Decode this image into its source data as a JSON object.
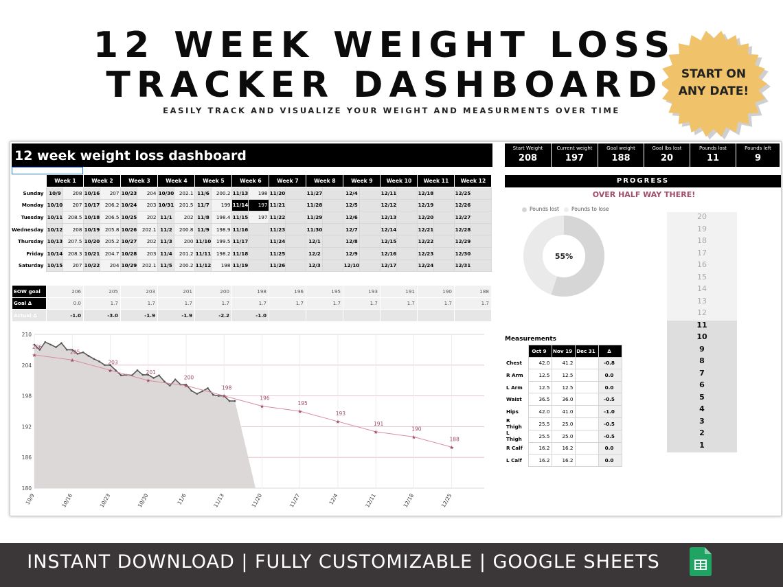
{
  "hero": {
    "line1": "12 WEEK WEIGHT LOSS",
    "line2": "TRACKER DASHBOARD",
    "subtitle": "EASILY TRACK AND VISUALIZE YOUR WEIGHT AND MEASURMENTS OVER TIME",
    "badge_line1": "START ON",
    "badge_line2": "ANY DATE!",
    "badge_color": "#f0c36a"
  },
  "sheet": {
    "title": "12 week weight loss dashboard",
    "stats": [
      {
        "label": "Start Weight",
        "value": "208"
      },
      {
        "label": "Current weight",
        "value": "197"
      },
      {
        "label": "Goal weight",
        "value": "188"
      },
      {
        "label": "Goal lbs lost",
        "value": "20"
      },
      {
        "label": "Pounds lost",
        "value": "11"
      },
      {
        "label": "Pounds left",
        "value": "9"
      }
    ],
    "weeks": [
      "Week 1",
      "Week 2",
      "Week 3",
      "Week 4",
      "Week 5",
      "Week 6",
      "Week 7",
      "Week 8",
      "Week 9",
      "Week 10",
      "Week 11",
      "Week 12"
    ],
    "days": [
      "Sunday",
      "Monday",
      "Tuesday",
      "Wednesday",
      "Thursday",
      "Friday",
      "Saturday"
    ],
    "grid": [
      [
        [
          "10/9",
          "208"
        ],
        [
          "10/16",
          "207"
        ],
        [
          "10/23",
          "204"
        ],
        [
          "10/30",
          "202.1"
        ],
        [
          "11/6",
          "200.2"
        ],
        [
          "11/13",
          "198"
        ],
        [
          "11/20",
          ""
        ],
        [
          "11/27",
          ""
        ],
        [
          "12/4",
          ""
        ],
        [
          "12/11",
          ""
        ],
        [
          "12/18",
          ""
        ],
        [
          "12/25",
          ""
        ]
      ],
      [
        [
          "10/10",
          "207"
        ],
        [
          "10/17",
          "206.2"
        ],
        [
          "10/24",
          "203"
        ],
        [
          "10/31",
          "201.5"
        ],
        [
          "11/7",
          "199"
        ],
        [
          "11/14",
          "197"
        ],
        [
          "11/21",
          ""
        ],
        [
          "11/28",
          ""
        ],
        [
          "12/5",
          ""
        ],
        [
          "12/12",
          ""
        ],
        [
          "12/19",
          ""
        ],
        [
          "12/26",
          ""
        ]
      ],
      [
        [
          "10/11",
          "208.5"
        ],
        [
          "10/18",
          "206.5"
        ],
        [
          "10/25",
          "202"
        ],
        [
          "11/1",
          "202"
        ],
        [
          "11/8",
          "198.4"
        ],
        [
          "11/15",
          "197"
        ],
        [
          "11/22",
          ""
        ],
        [
          "11/29",
          ""
        ],
        [
          "12/6",
          ""
        ],
        [
          "12/13",
          ""
        ],
        [
          "12/20",
          ""
        ],
        [
          "12/27",
          ""
        ]
      ],
      [
        [
          "10/12",
          "208"
        ],
        [
          "10/19",
          "205.8"
        ],
        [
          "10/26",
          "202.1"
        ],
        [
          "11/2",
          "200.8"
        ],
        [
          "11/9",
          "198.9"
        ],
        [
          "11/16",
          ""
        ],
        [
          "11/23",
          ""
        ],
        [
          "11/30",
          ""
        ],
        [
          "12/7",
          ""
        ],
        [
          "12/14",
          ""
        ],
        [
          "12/21",
          ""
        ],
        [
          "12/28",
          ""
        ]
      ],
      [
        [
          "10/13",
          "207.5"
        ],
        [
          "10/20",
          "205.2"
        ],
        [
          "10/27",
          "202"
        ],
        [
          "11/3",
          "200"
        ],
        [
          "11/10",
          "199.5"
        ],
        [
          "11/17",
          ""
        ],
        [
          "11/24",
          ""
        ],
        [
          "12/1",
          ""
        ],
        [
          "12/8",
          ""
        ],
        [
          "12/15",
          ""
        ],
        [
          "12/22",
          ""
        ],
        [
          "12/29",
          ""
        ]
      ],
      [
        [
          "10/14",
          "208.3"
        ],
        [
          "10/21",
          "204.7"
        ],
        [
          "10/28",
          "203"
        ],
        [
          "11/4",
          "201.2"
        ],
        [
          "11/11",
          "198.2"
        ],
        [
          "11/18",
          ""
        ],
        [
          "11/25",
          ""
        ],
        [
          "12/2",
          ""
        ],
        [
          "12/9",
          ""
        ],
        [
          "12/16",
          ""
        ],
        [
          "12/23",
          ""
        ],
        [
          "12/30",
          ""
        ]
      ],
      [
        [
          "10/15",
          "207"
        ],
        [
          "10/22",
          "204"
        ],
        [
          "10/29",
          "202.1"
        ],
        [
          "11/5",
          "200.2"
        ],
        [
          "11/12",
          "198"
        ],
        [
          "11/19",
          ""
        ],
        [
          "11/26",
          ""
        ],
        [
          "12/3",
          ""
        ],
        [
          "12/10",
          ""
        ],
        [
          "12/17",
          ""
        ],
        [
          "12/24",
          ""
        ],
        [
          "12/31",
          ""
        ]
      ]
    ],
    "goals": {
      "labels": [
        "EOW goal",
        "Goal Δ",
        "Actual Δ"
      ],
      "eow": [
        "206",
        "205",
        "203",
        "201",
        "200",
        "198",
        "196",
        "195",
        "193",
        "191",
        "190",
        "188"
      ],
      "goal_delta": [
        "0.0",
        "1.7",
        "1.7",
        "1.7",
        "1.7",
        "1.7",
        "1.7",
        "1.7",
        "1.7",
        "1.7",
        "1.7",
        "1.7"
      ],
      "actual_delta": [
        "-1.0",
        "-3.0",
        "-1.9",
        "-1.9",
        "-2.2",
        "-1.0",
        "",
        "",
        "",
        "",
        "",
        ""
      ]
    },
    "progress": {
      "header": "PROGRESS",
      "message": "OVER HALF WAY THERE!",
      "legend_lost": "Pounds lost",
      "legend_to_lose": "Pounds to lose",
      "percent_label": "55%",
      "percent_value": 0.55,
      "scale": [
        "20",
        "19",
        "18",
        "17",
        "16",
        "15",
        "14",
        "13",
        "12",
        "11",
        "10",
        "9",
        "8",
        "7",
        "6",
        "5",
        "4",
        "3",
        "2",
        "1"
      ],
      "scale_filled": 11
    },
    "measurements": {
      "title": "Measurements",
      "headers": [
        "Oct 9",
        "Nov 19",
        "Dec 31",
        "Δ"
      ],
      "rows": [
        {
          "name": "Chest",
          "v": [
            "42.0",
            "41.2",
            ""
          ],
          "d": "-0.8"
        },
        {
          "name": "R Arm",
          "v": [
            "12.5",
            "12.5",
            ""
          ],
          "d": "0.0"
        },
        {
          "name": "L Arm",
          "v": [
            "12.5",
            "12.5",
            ""
          ],
          "d": "0.0"
        },
        {
          "name": "Waist",
          "v": [
            "36.5",
            "36.0",
            ""
          ],
          "d": "-0.5"
        },
        {
          "name": "Hips",
          "v": [
            "42.0",
            "41.0",
            ""
          ],
          "d": "-1.0"
        },
        {
          "name": "R Thigh",
          "v": [
            "25.5",
            "25.0",
            ""
          ],
          "d": "-0.5"
        },
        {
          "name": "L Thigh",
          "v": [
            "25.5",
            "25.0",
            ""
          ],
          "d": "-0.5"
        },
        {
          "name": "R Calf",
          "v": [
            "16.2",
            "16.2",
            ""
          ],
          "d": "0.0"
        },
        {
          "name": "L Calf",
          "v": [
            "16.2",
            "16.2",
            ""
          ],
          "d": "0.0"
        }
      ]
    }
  },
  "chart_data": {
    "type": "area",
    "ylim": [
      180,
      210
    ],
    "yticks": [
      "210",
      "204",
      "198",
      "192",
      "186",
      "180"
    ],
    "xticks": [
      "10/9",
      "10/16",
      "10/23",
      "10/30",
      "11/6",
      "11/13",
      "11/20",
      "11/27",
      "12/4",
      "12/11",
      "12/18",
      "12/25"
    ],
    "actual": [
      208,
      207,
      208.5,
      208,
      207.5,
      208.3,
      207,
      207,
      206.2,
      206.5,
      205.8,
      205.2,
      204.7,
      204,
      204,
      203,
      202,
      202.1,
      202,
      203,
      202.1,
      202.1,
      201.5,
      202,
      200.8,
      200,
      201.2,
      200.2,
      200.2,
      199,
      198.4,
      198.9,
      199.5,
      198.2,
      198,
      198,
      197,
      197
    ],
    "goal_series": [
      "206",
      "205",
      "203",
      "201",
      "200",
      "198",
      "196",
      "195",
      "193",
      "191",
      "190",
      "188"
    ],
    "colors": {
      "area": "#dcd8d8",
      "line": "#555555",
      "goal": "#d98aa0",
      "goal_label": "#a04c6a"
    }
  },
  "footer": {
    "text": "INSTANT DOWNLOAD  |  FULLY CUSTOMIZABLE  | GOOGLE SHEETS",
    "bg": "#3b3637"
  }
}
